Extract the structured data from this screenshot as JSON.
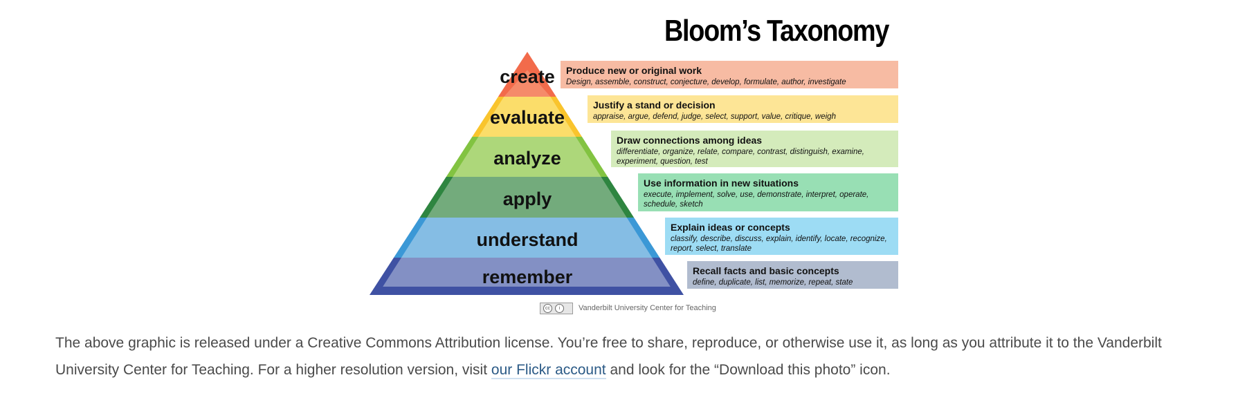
{
  "diagram": {
    "title": "Bloom’s Taxonomy",
    "levels": [
      {
        "label": "create",
        "heading": "Produce new or original work",
        "verbs": "Design, assemble, construct, conjecture, develop, formulate, author, investigate",
        "color": "#f26b4b",
        "inner_color": "#f58a6a",
        "box_color": "#f7bba3"
      },
      {
        "label": "evaluate",
        "heading": "Justify a stand or decision",
        "verbs": "appraise, argue, defend, judge, select, support, value, critique, weigh",
        "color": "#f9c42d",
        "inner_color": "#fbdd6a",
        "box_color": "#fde596"
      },
      {
        "label": "analyze",
        "heading": "Draw connections among ideas",
        "verbs": "differentiate, organize, relate, compare, contrast, distinguish, examine, experiment, question, test",
        "color": "#82c341",
        "inner_color": "#add77a",
        "box_color": "#d4ebbb"
      },
      {
        "label": "apply",
        "heading": "Use information in new situations",
        "verbs": "execute, implement, solve, use, demonstrate, interpret, operate, schedule, sketch",
        "color": "#2e8540",
        "inner_color": "#73ab7c",
        "box_color": "#98dfb4"
      },
      {
        "label": "understand",
        "heading": "Explain ideas or concepts",
        "verbs": "classify, describe, discuss, explain, identify, locate, recognize, report, select, translate",
        "color": "#3b98d6",
        "inner_color": "#85bde4",
        "box_color": "#9ddcf4"
      },
      {
        "label": "remember",
        "heading": "Recall facts and basic concepts",
        "verbs": "define, duplicate, list, memorize, repeat, state",
        "color": "#3f51a3",
        "inner_color": "#8390c4",
        "box_color": "#b1bccf"
      }
    ],
    "credit": "Vanderbilt University Center for Teaching",
    "cc_badge_icons": [
      "cc-icon",
      "attribution-icon"
    ]
  },
  "paragraph": {
    "text_before": "The above graphic is released under a Creative Commons Attribution license. You’re free to share, reproduce, or otherwise use it, as long as you attribute it to the Vanderbilt University Center for Teaching. For a higher resolution version, visit ",
    "link_text": "our Flickr account",
    "text_after": " and look for the “Download this photo” icon.",
    "link_color": "#2b5a86",
    "text_color": "#4a4a4a"
  }
}
